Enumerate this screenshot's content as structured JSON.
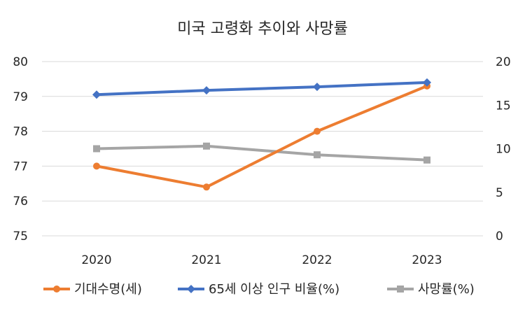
{
  "chart_data": {
    "type": "line",
    "title": "미국 고령화 추이와 사망률",
    "categories": [
      "2020",
      "2021",
      "2022",
      "2023"
    ],
    "y_left": {
      "min": 75,
      "max": 80,
      "ticks": [
        "75",
        "76",
        "77",
        "78",
        "79",
        "80"
      ]
    },
    "y_right": {
      "min": 0,
      "max": 20,
      "ticks": [
        "0",
        "5",
        "10",
        "15",
        "20"
      ]
    },
    "gridlines": true,
    "legend_position": "bottom",
    "series": [
      {
        "name": "기대수명(세)",
        "axis": "left",
        "color": "#ED7D31",
        "marker": "circle",
        "values": [
          77.0,
          76.4,
          78.0,
          79.3
        ]
      },
      {
        "name": "65세 이상 인구 비율(%)",
        "axis": "right",
        "color": "#4472C4",
        "marker": "diamond",
        "values": [
          16.2,
          16.7,
          17.1,
          17.6
        ]
      },
      {
        "name": "사망률(%)",
        "axis": "right",
        "color": "#A5A5A5",
        "marker": "square",
        "values": [
          10.0,
          10.3,
          9.3,
          8.7
        ]
      }
    ]
  }
}
